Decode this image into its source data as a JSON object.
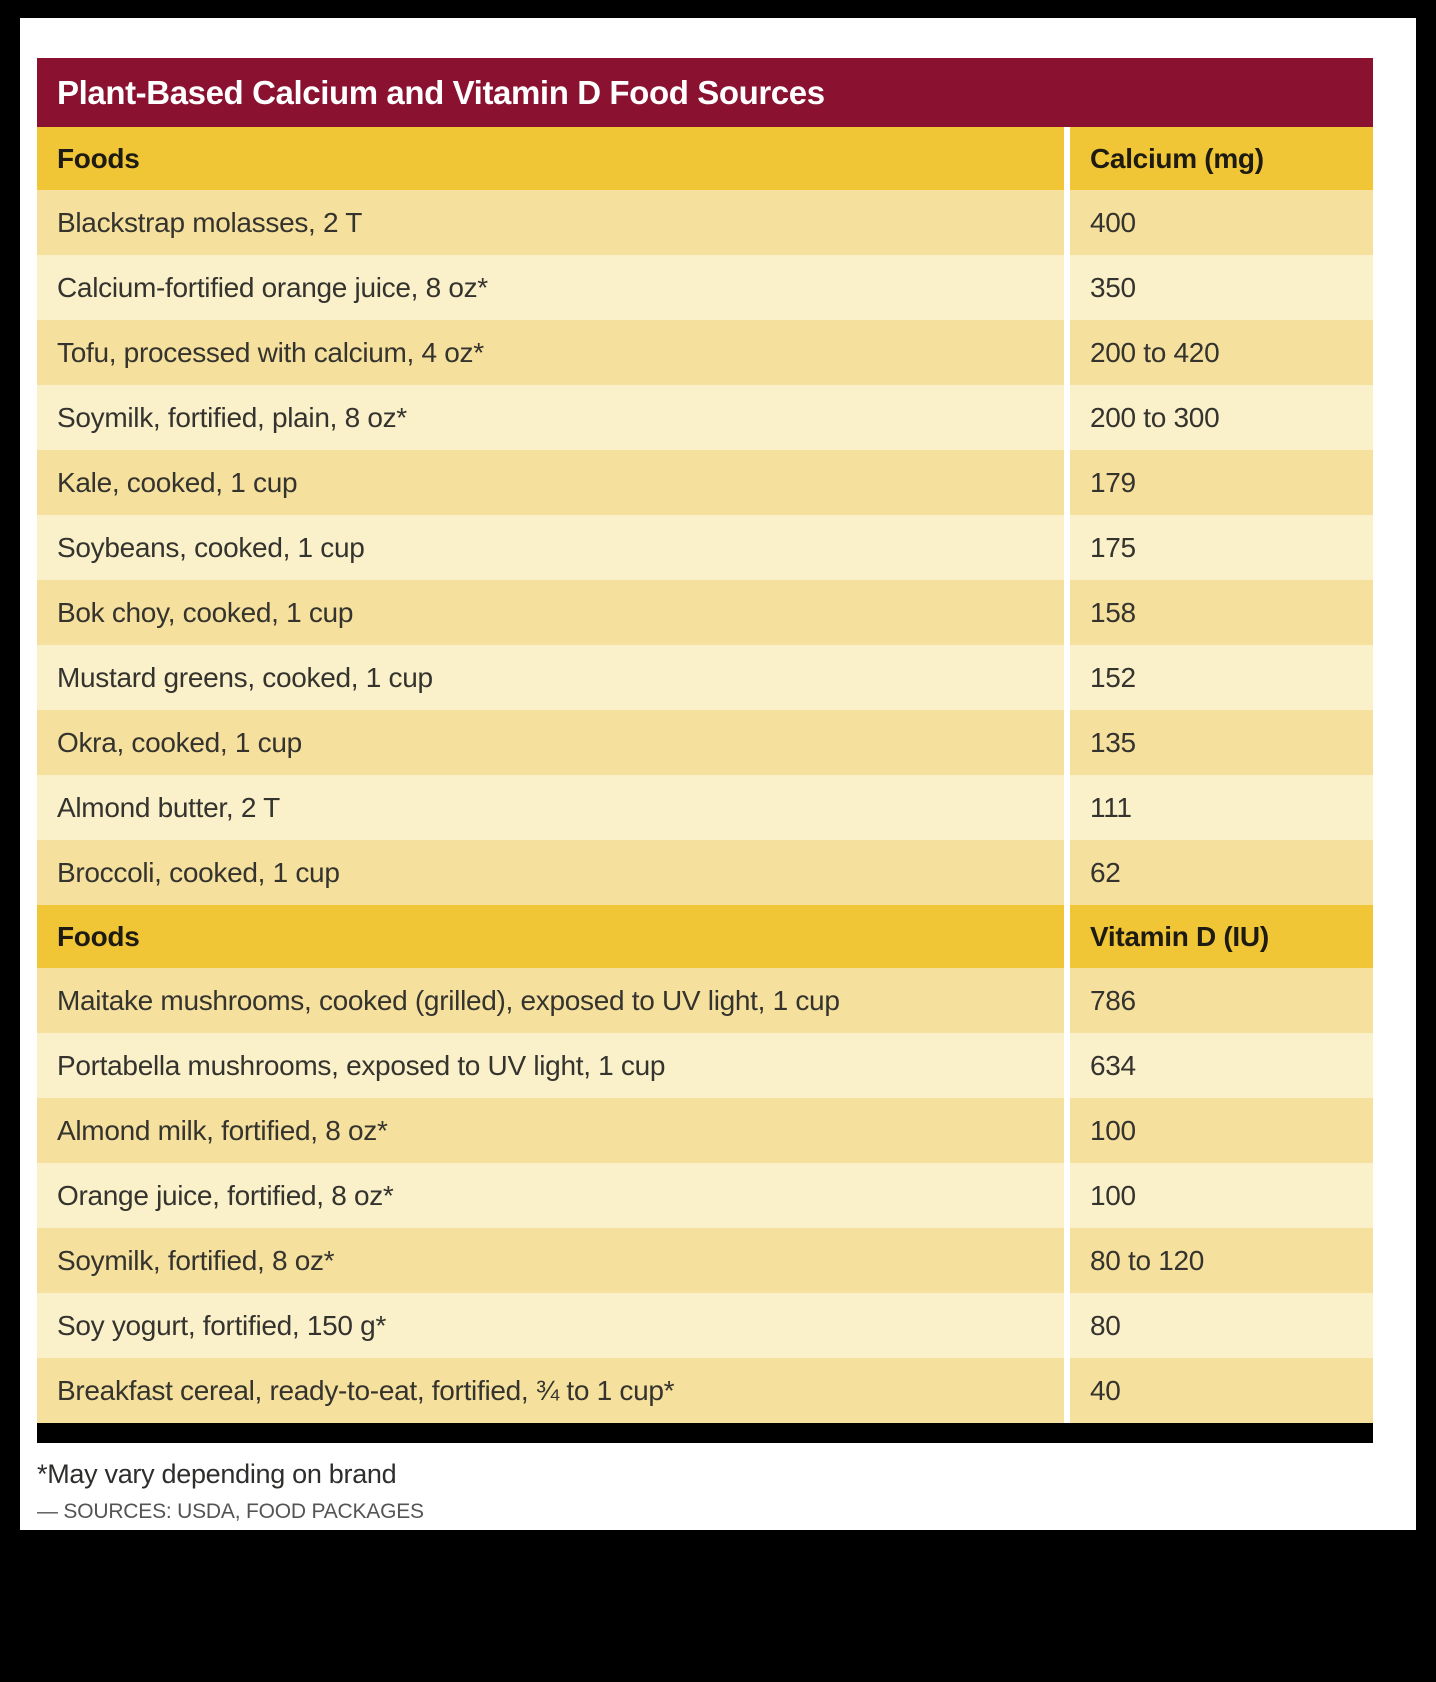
{
  "title": "Plant-Based Calcium and Vitamin D Food Sources",
  "sections": [
    {
      "header": {
        "foods": "Foods",
        "value": "Calcium (mg)"
      },
      "rows": [
        {
          "food": "Blackstrap molasses, 2 T",
          "value": "400"
        },
        {
          "food": "Calcium-fortified orange juice, 8 oz*",
          "value": "350"
        },
        {
          "food": "Tofu, processed with calcium, 4 oz*",
          "value": "200 to 420"
        },
        {
          "food": "Soymilk, fortified, plain, 8 oz*",
          "value": "200 to 300"
        },
        {
          "food": "Kale, cooked, 1 cup",
          "value": "179"
        },
        {
          "food": "Soybeans, cooked, 1 cup",
          "value": "175"
        },
        {
          "food": "Bok choy, cooked, 1 cup",
          "value": "158"
        },
        {
          "food": "Mustard greens, cooked, 1 cup",
          "value": "152"
        },
        {
          "food": "Okra, cooked, 1 cup",
          "value": "135"
        },
        {
          "food": "Almond butter, 2 T",
          "value": "111"
        },
        {
          "food": "Broccoli, cooked, 1 cup",
          "value": "62"
        }
      ]
    },
    {
      "header": {
        "foods": "Foods",
        "value": "Vitamin D (IU)"
      },
      "rows": [
        {
          "food": "Maitake mushrooms, cooked (grilled), exposed to UV light, 1 cup",
          "value": "786"
        },
        {
          "food": "Portabella mushrooms, exposed to UV light, 1 cup",
          "value": "634"
        },
        {
          "food": "Almond milk, fortified, 8 oz*",
          "value": "100"
        },
        {
          "food": "Orange juice, fortified, 8 oz*",
          "value": "100"
        },
        {
          "food": "Soymilk, fortified, 8 oz*",
          "value": "80 to 120"
        },
        {
          "food": "Soy yogurt, fortified, 150 g*",
          "value": "80"
        },
        {
          "food": "Breakfast cereal, ready-to-eat, fortified, ¾ to 1 cup*",
          "value": "40"
        }
      ]
    }
  ],
  "footnotes": {
    "brand_note": "*May vary depending on brand",
    "sources": "— SOURCES: USDA, FOOD PACKAGES"
  },
  "colors": {
    "maroon": "#8B1130",
    "gold": "#F1C636",
    "row_tan": "#F5E09D",
    "row_cream": "#FAF0C9",
    "text_dark": "#34332E",
    "source_gray": "#545454"
  }
}
